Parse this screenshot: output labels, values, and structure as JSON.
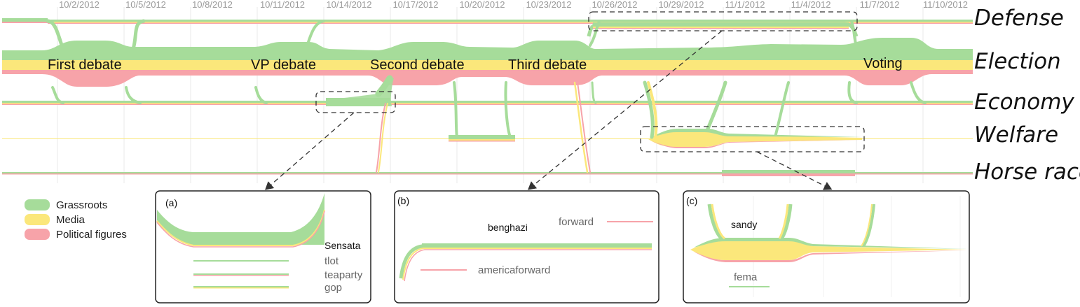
{
  "dates": [
    "10/2/2012",
    "10/5/2012",
    "10/8/2012",
    "10/11/2012",
    "10/14/2012",
    "10/17/2012",
    "10/20/2012",
    "10/23/2012",
    "10/26/2012",
    "10/29/2012",
    "11/1/2012",
    "11/4/2012",
    "11/7/2012",
    "11/10/2012"
  ],
  "topics": [
    "Defense",
    "Election",
    "Economy",
    "Welfare",
    "Horse race"
  ],
  "events": [
    "First debate",
    "VP debate",
    "Second debate",
    "Third debate",
    "Voting"
  ],
  "legend": [
    {
      "label": "Grassroots",
      "color": "#a6dc9a"
    },
    {
      "label": "Media",
      "color": "#fbe77b"
    },
    {
      "label": "Political figures",
      "color": "#f7a3a9"
    }
  ],
  "panels": {
    "a": {
      "letter": "(a)",
      "keywords": [
        "Sensata",
        "tlot",
        "teaparty",
        "gop"
      ]
    },
    "b": {
      "letter": "(b)",
      "keywords": [
        "benghazi",
        "forward",
        "americaforward"
      ]
    },
    "c": {
      "letter": "(c)",
      "keywords": [
        "sandy",
        "fema"
      ]
    }
  },
  "colors": {
    "green": "#a6dc9a",
    "yellow": "#fbe77b",
    "pink": "#f7a3a9",
    "grid": "#e4e4e4"
  }
}
